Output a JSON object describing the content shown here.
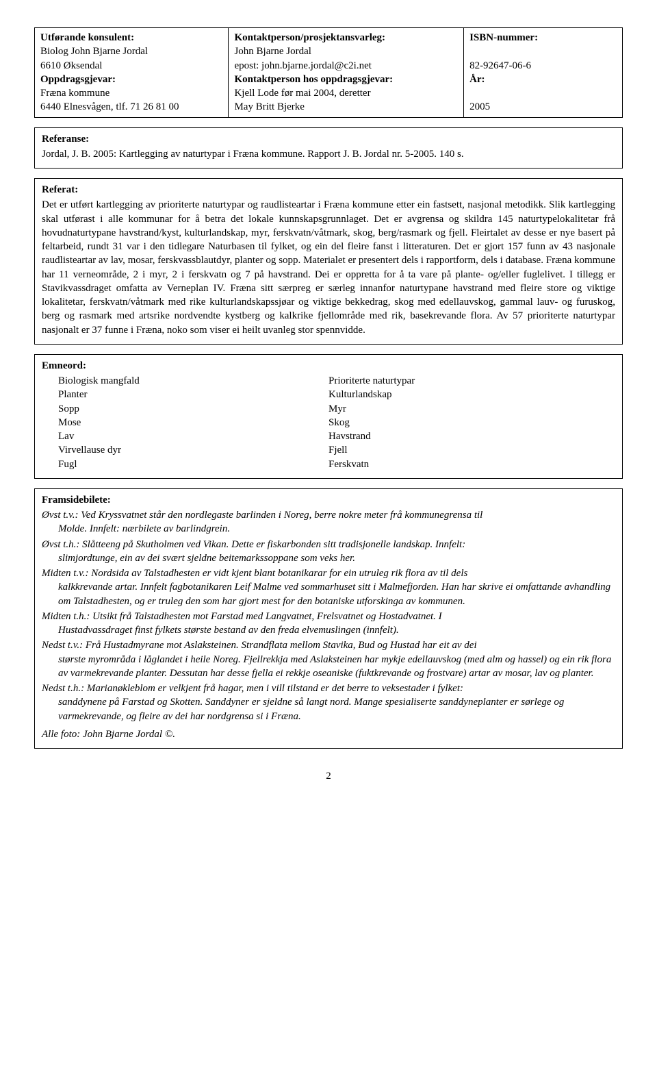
{
  "header": {
    "col1": {
      "l1b": "Utførande konsulent:",
      "l2": "Biolog John Bjarne Jordal",
      "l3": "6610 Øksendal",
      "l4b": "Oppdragsgjevar:",
      "l5": "Fræna kommune",
      "l6": "6440 Elnesvågen, tlf. 71 26 81 00"
    },
    "col2": {
      "l1b": "Kontaktperson/prosjektansvarleg:",
      "l2": "John Bjarne Jordal",
      "l3": "epost: john.bjarne.jordal@c2i.net",
      "l4b": "Kontaktperson hos oppdragsgjevar:",
      "l5": "Kjell Lode før mai 2004, deretter",
      "l6": "May Britt Bjerke"
    },
    "col3": {
      "l1b": "ISBN-nummer:",
      "l2": "",
      "l3": "82-92647-06-6",
      "l4b": "År:",
      "l5": "",
      "l6": "2005"
    }
  },
  "referanse": {
    "title": "Referanse:",
    "text": "Jordal, J. B. 2005: Kartlegging av naturtypar i Fræna kommune. Rapport J. B. Jordal nr. 5-2005. 140 s."
  },
  "referat": {
    "title": "Referat:",
    "text": "Det er utført kartlegging av prioriterte naturtypar og raudlisteartar i Fræna kommune etter ein fastsett, nasjonal metodikk. Slik kartlegging skal utførast i alle kommunar for å betra det lokale kunnskapsgrunnlaget. Det er avgrensa og skildra 145 naturtypelokalitetar frå hovudnaturtypane havstrand/kyst, kulturlandskap, myr, ferskvatn/våtmark, skog, berg/rasmark og fjell. Fleirtalet av desse er nye basert på feltarbeid, rundt 31 var i den tidlegare Naturbasen til fylket, og ein del fleire fanst i litteraturen. Det er gjort 157 funn av 43 nasjonale raudlisteartar av lav, mosar, ferskvassblautdyr, planter og sopp. Materialet er presentert dels i rapportform, dels i database. Fræna kommune har 11 verneområde, 2 i myr, 2 i ferskvatn og 7 på havstrand. Dei er oppretta for å ta vare på plante- og/eller fuglelivet. I tillegg er Stavikvassdraget omfatta av Verneplan IV. Fræna sitt særpreg er særleg innanfor naturtypane havstrand med fleire store og viktige lokalitetar, ferskvatn/våtmark med rike kulturlandskapssjøar og viktige bekkedrag, skog med edellauvskog, gammal lauv- og furuskog, berg og rasmark med artsrike nordvendte kystberg og kalkrike fjellområde med rik, basekrevande flora. Av 57 prioriterte naturtypar nasjonalt er 37 funne i Fræna, noko som viser ei heilt uvanleg stor spennvidde."
  },
  "emneord": {
    "title": "Emneord:",
    "left": [
      "Biologisk mangfald",
      "Planter",
      "Sopp",
      "Mose",
      "Lav",
      "Virvellause dyr",
      "Fugl"
    ],
    "right": [
      "Prioriterte naturtypar",
      "Kulturlandskap",
      "Myr",
      "Skog",
      "Havstrand",
      "Fjell",
      "Ferskvatn"
    ]
  },
  "framside": {
    "title": "Framsidebilete:",
    "entries": [
      {
        "label": "Øvst t.v.:",
        "first": " Ved Kryssvatnet står den nordlegaste barlinden i Noreg, berre nokre meter frå kommunegrensa til",
        "rest": "Molde. Innfelt: nærbilete av barlindgrein."
      },
      {
        "label": "Øvst t.h.:",
        "first": " Slåtteeng på Skutholmen ved Vikan. Dette er fiskarbonden sitt tradisjonelle landskap. Innfelt:",
        "rest": "slimjordtunge, ein av dei svært sjeldne beitemarkssoppane som veks her."
      },
      {
        "label": "Midten t.v.:",
        "first": " Nordsida av Talstadhesten er vidt kjent blant botanikarar for ein utruleg rik flora av til dels",
        "rest": "kalkkrevande artar. Innfelt fagbotanikaren Leif Malme ved sommarhuset sitt i Malmefjorden. Han har skrive ei omfattande avhandling om Talstadhesten, og er truleg den som har gjort mest for den botaniske utforskinga av kommunen."
      },
      {
        "label": "Midten t.h.:",
        "first": " Utsikt frå Talstadhesten mot Farstad med Langvatnet, Frelsvatnet og Hostadvatnet. I",
        "rest": "Hustadvassdraget finst fylkets største bestand av den freda elvemuslingen (innfelt)."
      },
      {
        "label": "Nedst t.v.:",
        "first": " Frå Hustadmyrane mot Aslaksteinen. Strandflata mellom Stavika, Bud og Hustad har eit av dei",
        "rest": "største myrområda i låglandet i heile Noreg. Fjellrekkja med Aslaksteinen har mykje edellauvskog (med alm og hassel) og ein rik flora av varmekrevande planter. Dessutan har desse fjella ei rekkje oseaniske (fuktkrevande og frostvare) artar av mosar, lav og planter."
      },
      {
        "label": "Nedst t.h.:",
        "first": " Marianøkleblom er velkjent frå hagar, men i vill tilstand er det berre to veksestader i fylket:",
        "rest": "sanddynene på Farstad og Skotten. Sanddyner er sjeldne så langt nord. Mange spesialiserte sanddyneplanter er sørlege og varmekrevande, og fleire av dei har nordgrensa si i Fræna."
      }
    ],
    "footer_label": "Alle foto: John Bjarne Jordal",
    "footer_rest": " ©."
  },
  "page_number": "2"
}
